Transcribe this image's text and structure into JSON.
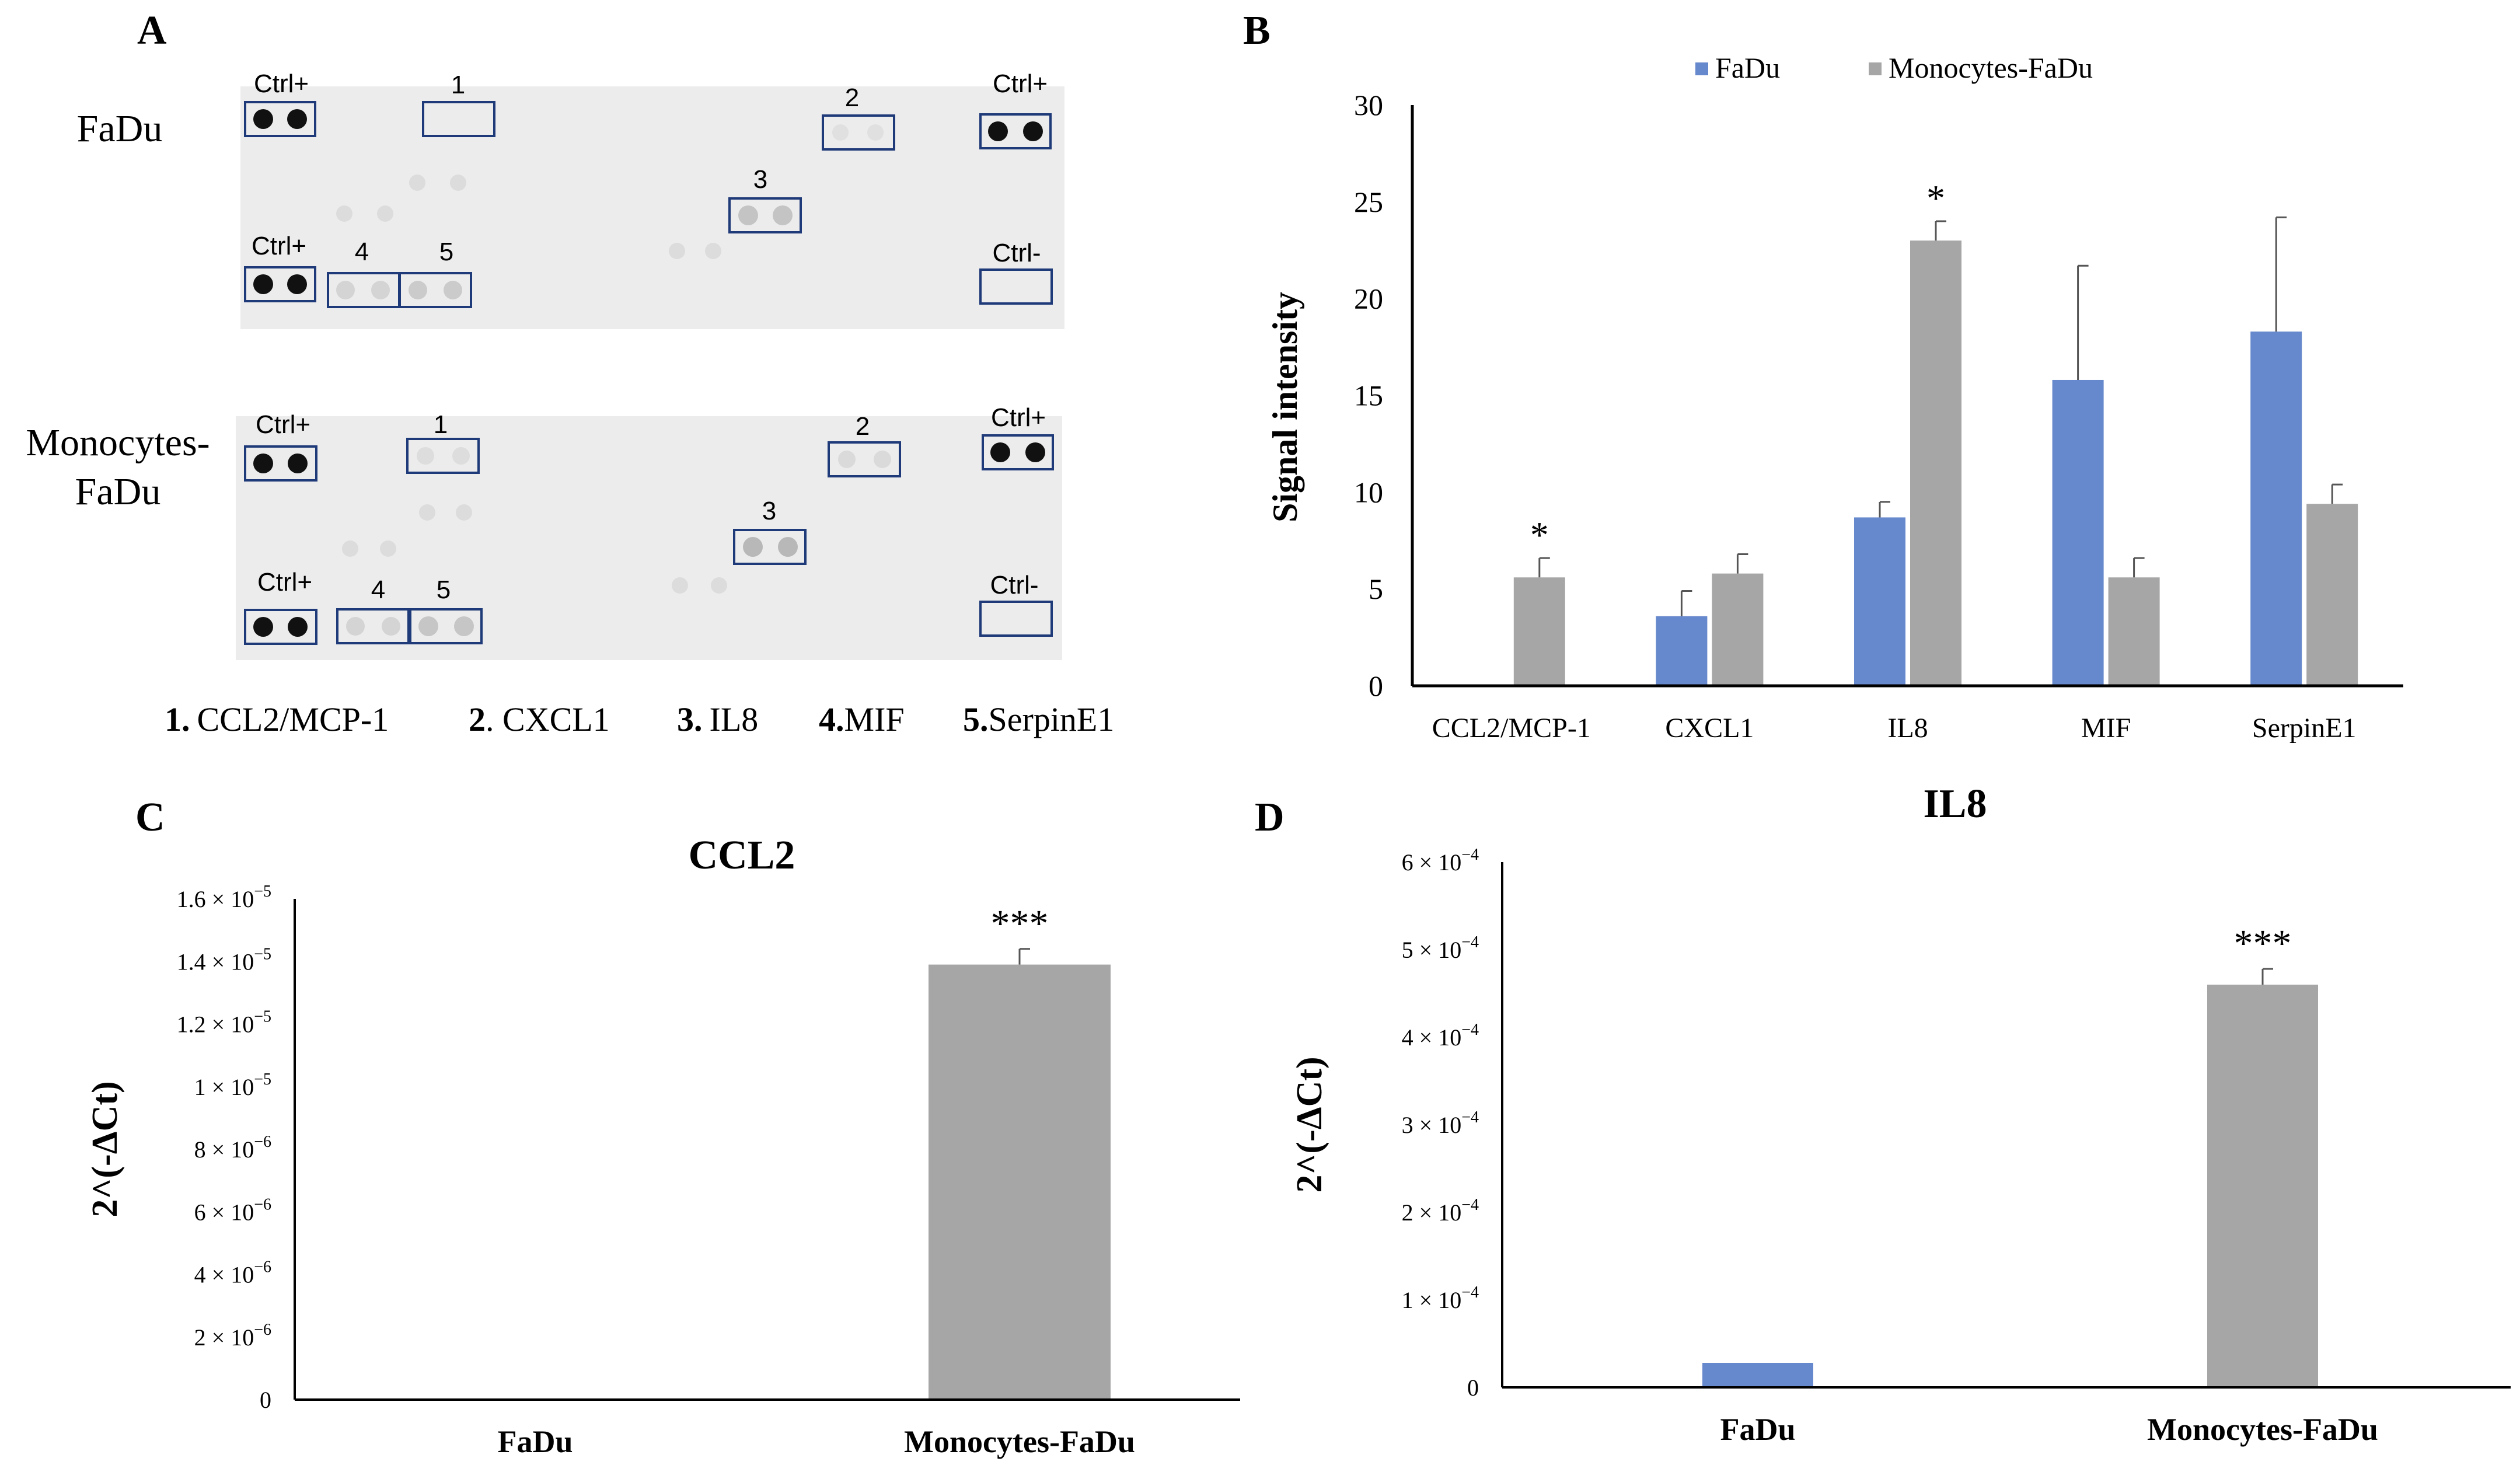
{
  "panels": {
    "a": {
      "letter": "A"
    },
    "b": {
      "letter": "B"
    },
    "c": {
      "letter": "C"
    },
    "d": {
      "letter": "D"
    }
  },
  "blots": [
    {
      "name_lines": [
        "FaDu"
      ],
      "ctrl_pos_labels": [
        "Ctrl+",
        "Ctrl+",
        "Ctrl+"
      ],
      "ctrl_neg_label": "Ctrl-",
      "box_labels": [
        "1",
        "2",
        "3",
        "4",
        "5"
      ]
    },
    {
      "name_lines": [
        "Monocytes-",
        "FaDu"
      ],
      "ctrl_pos_labels": [
        "Ctrl+",
        "Ctrl+",
        "Ctrl+"
      ],
      "ctrl_neg_label": "Ctrl-",
      "box_labels": [
        "1",
        "2",
        "3",
        "4",
        "5"
      ]
    }
  ],
  "legend_key": [
    {
      "num": "1.",
      "name": "CCL2/MCP-1"
    },
    {
      "num": "2",
      "name": ". CXCL1"
    },
    {
      "num": "3.",
      "name": "IL8"
    },
    {
      "num": "4.",
      "name": "MIF"
    },
    {
      "num": "5.",
      "name": "SerpinE1"
    }
  ],
  "colors": {
    "fadu": "#6688cc",
    "monocytes": "#a6a6a6",
    "box": "#1f3a78",
    "membrane": "#ececec"
  },
  "chart_data": [
    {
      "panel": "B",
      "type": "bar",
      "title": "",
      "xlabel": "",
      "ylabel": "Signal intensity",
      "ylim": [
        0,
        30
      ],
      "yticks": [
        0,
        5,
        10,
        15,
        20,
        25,
        30
      ],
      "categories": [
        "CCL2/MCP-1",
        "CXCL1",
        "IL8",
        "MIF",
        "SerpinE1"
      ],
      "series": [
        {
          "name": "FaDu",
          "values": [
            0,
            3.6,
            8.7,
            15.8,
            18.3
          ],
          "errors": [
            0,
            1.3,
            0.8,
            5.9,
            5.9
          ]
        },
        {
          "name": "Monocytes-FaDu",
          "values": [
            5.6,
            5.8,
            23.0,
            5.6,
            9.4
          ],
          "errors": [
            1.0,
            1.0,
            1.0,
            1.0,
            1.0
          ]
        }
      ],
      "significance": [
        {
          "category": "CCL2/MCP-1",
          "series": "Monocytes-FaDu",
          "label": "*"
        },
        {
          "category": "IL8",
          "series": "Monocytes-FaDu",
          "label": "*"
        }
      ],
      "legend_position": "top"
    },
    {
      "panel": "C",
      "type": "bar",
      "title": "CCL2",
      "xlabel": "",
      "ylabel": "2^(-ΔCt)",
      "ylim": [
        0,
        1.6e-05
      ],
      "yticks": [
        {
          "value": 0,
          "mantissa": "0",
          "exponent": ""
        },
        {
          "value": 2e-06,
          "mantissa": "2 × 10",
          "exponent": "−6"
        },
        {
          "value": 4e-06,
          "mantissa": "4 × 10",
          "exponent": "−6"
        },
        {
          "value": 6e-06,
          "mantissa": "6 × 10",
          "exponent": "−6"
        },
        {
          "value": 8e-06,
          "mantissa": "8 × 10",
          "exponent": "−6"
        },
        {
          "value": 1e-05,
          "mantissa": "1 × 10",
          "exponent": "−5"
        },
        {
          "value": 1.2e-05,
          "mantissa": "1.2 × 10",
          "exponent": "−5"
        },
        {
          "value": 1.4e-05,
          "mantissa": "1.4 × 10",
          "exponent": "−5"
        },
        {
          "value": 1.6e-05,
          "mantissa": "1.6 × 10",
          "exponent": "−5"
        }
      ],
      "categories": [
        "FaDu",
        "Monocytes-FaDu"
      ],
      "values": [
        0,
        1.39e-05
      ],
      "errors": [
        0,
        5e-07
      ],
      "colors": [
        "#6688cc",
        "#a6a6a6"
      ],
      "significance": [
        {
          "category": "Monocytes-FaDu",
          "label": "***"
        }
      ]
    },
    {
      "panel": "D",
      "type": "bar",
      "title": "IL8",
      "xlabel": "",
      "ylabel": "2^(-ΔCt)",
      "ylim": [
        0,
        0.0006
      ],
      "yticks": [
        {
          "value": 0,
          "mantissa": "0",
          "exponent": ""
        },
        {
          "value": 0.0001,
          "mantissa": "1 × 10",
          "exponent": "−4"
        },
        {
          "value": 0.0002,
          "mantissa": "2 × 10",
          "exponent": "−4"
        },
        {
          "value": 0.0003,
          "mantissa": "3 × 10",
          "exponent": "−4"
        },
        {
          "value": 0.0004,
          "mantissa": "4 × 10",
          "exponent": "−4"
        },
        {
          "value": 0.0005,
          "mantissa": "5 × 10",
          "exponent": "−4"
        },
        {
          "value": 0.0006,
          "mantissa": "6 × 10",
          "exponent": "−4"
        }
      ],
      "categories": [
        "FaDu",
        "Monocytes-FaDu"
      ],
      "values": [
        2.8e-05,
        0.00046
      ],
      "errors": [
        0,
        1.8e-05
      ],
      "colors": [
        "#6688cc",
        "#a6a6a6"
      ],
      "significance": [
        {
          "category": "Monocytes-FaDu",
          "label": "***"
        }
      ]
    }
  ]
}
